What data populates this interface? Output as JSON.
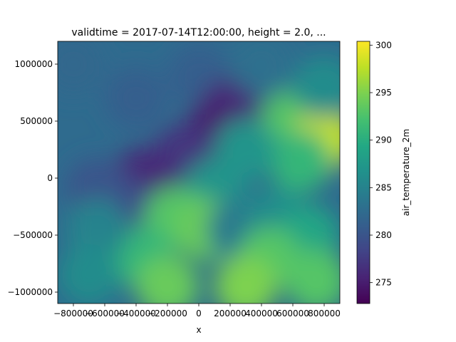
{
  "chart_data": {
    "type": "heatmap",
    "title": "validtime = 2017-07-14T12:00:00, height = 2.0, ...",
    "xlabel": "x",
    "ylabel": "",
    "xlim": [
      -900000,
      900000
    ],
    "ylim": [
      -1100000,
      1200000
    ],
    "x_ticks": [
      -800000,
      -600000,
      -400000,
      -200000,
      0,
      200000,
      400000,
      600000,
      800000
    ],
    "x_tick_labels": [
      "−800000",
      "−600000",
      "−400000",
      "−200000",
      "0",
      "200000",
      "400000",
      "600000",
      "800000"
    ],
    "y_ticks": [
      1000000,
      500000,
      0,
      -500000,
      -1000000
    ],
    "y_tick_labels": [
      "1000000",
      "500000",
      "0",
      "−500000",
      "−1000000"
    ],
    "colorbar": {
      "label": "air_temperature_2m",
      "range": [
        272.8,
        300.4
      ],
      "ticks": [
        275,
        280,
        285,
        290,
        295,
        300
      ],
      "tick_labels": [
        "275",
        "280",
        "285",
        "290",
        "295",
        "300"
      ],
      "colormap": "viridis"
    },
    "regions": [
      {
        "x": -800000,
        "y": 1000000,
        "value": 282
      },
      {
        "x": -400000,
        "y": 700000,
        "value": 281
      },
      {
        "x": 0,
        "y": 900000,
        "value": 281
      },
      {
        "x": 200000,
        "y": 600000,
        "value": 276
      },
      {
        "x": 100000,
        "y": 400000,
        "value": 275
      },
      {
        "x": -100000,
        "y": 200000,
        "value": 277
      },
      {
        "x": -350000,
        "y": 0,
        "value": 276
      },
      {
        "x": -500000,
        "y": -250000,
        "value": 279
      },
      {
        "x": -650000,
        "y": -100000,
        "value": 280
      },
      {
        "x": 600000,
        "y": 500000,
        "value": 293
      },
      {
        "x": 800000,
        "y": 350000,
        "value": 298
      },
      {
        "x": 650000,
        "y": 150000,
        "value": 291
      },
      {
        "x": 300000,
        "y": 250000,
        "value": 287
      },
      {
        "x": 100000,
        "y": -100000,
        "value": 287
      },
      {
        "x": -150000,
        "y": -350000,
        "value": 293
      },
      {
        "x": 50000,
        "y": -450000,
        "value": 294
      },
      {
        "x": 250000,
        "y": -450000,
        "value": 284
      },
      {
        "x": 500000,
        "y": -350000,
        "value": 286
      },
      {
        "x": 700000,
        "y": -500000,
        "value": 289
      },
      {
        "x": 450000,
        "y": -700000,
        "value": 293
      },
      {
        "x": -350000,
        "y": -700000,
        "value": 291
      },
      {
        "x": -650000,
        "y": -450000,
        "value": 285
      },
      {
        "x": -200000,
        "y": -950000,
        "value": 294
      },
      {
        "x": 300000,
        "y": -950000,
        "value": 295
      },
      {
        "x": 750000,
        "y": -900000,
        "value": 293
      },
      {
        "x": -700000,
        "y": -850000,
        "value": 286
      },
      {
        "x": 800000,
        "y": 800000,
        "value": 286
      },
      {
        "x": 400000,
        "y": 1000000,
        "value": 283
      }
    ]
  }
}
